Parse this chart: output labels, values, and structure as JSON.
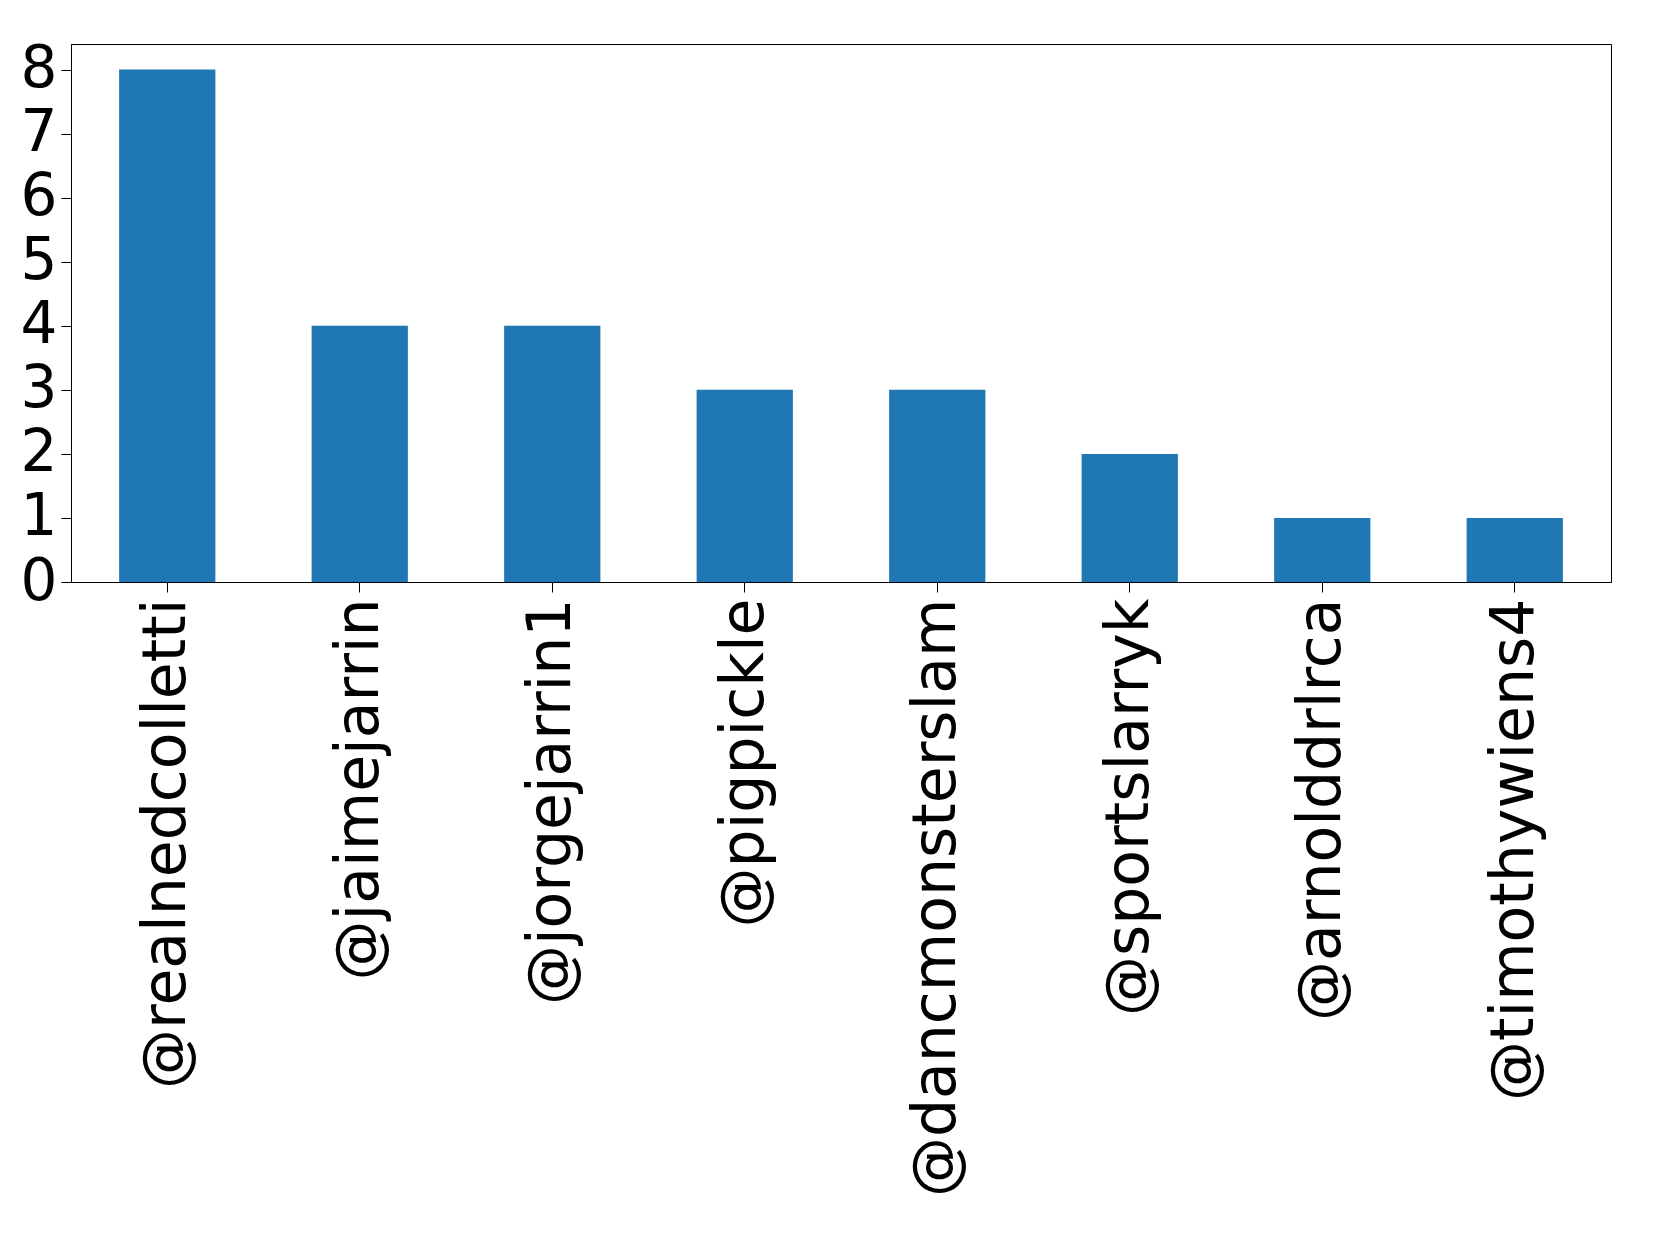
{
  "chart_data": {
    "type": "bar",
    "categories": [
      "@realnedcolletti",
      "@jaimejarrin",
      "@jorgejarrin1",
      "@pigpickle",
      "@dancmonsterslam",
      "@sportslarryk",
      "@arnolddrlrca",
      "@timothywiens4"
    ],
    "values": [
      8,
      4,
      4,
      3,
      3,
      2,
      1,
      1
    ],
    "color": "#1f77b4",
    "ylim": [
      0,
      8.4
    ],
    "yticks": [
      0,
      1,
      2,
      3,
      4,
      5,
      6,
      7,
      8
    ],
    "grid": false
  }
}
